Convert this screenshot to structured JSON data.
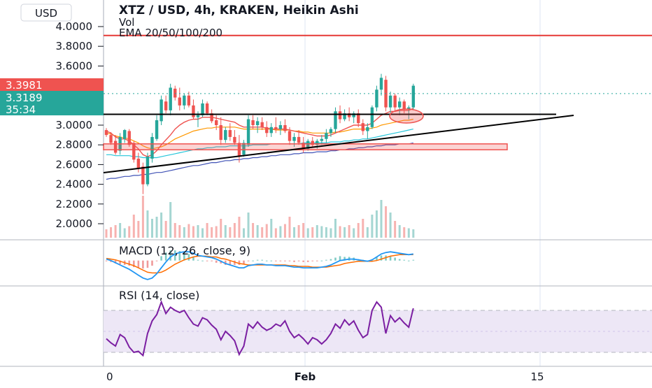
{
  "header": {
    "currency_button": "USD",
    "title": "XTZ / USD, 4h, KRAKEN, Heikin Ashi",
    "volume_label": "Vol",
    "ema_label": "EMA 20/50/100/200"
  },
  "price_labels": [
    {
      "text": "3.3981",
      "color": "#ef5350"
    },
    {
      "text": "3.3189",
      "color": "#26a69a"
    },
    {
      "text": "35:34",
      "color": "#26a69a"
    }
  ],
  "colors": {
    "up": "#26a69a",
    "down": "#ef5350",
    "ema20": "#ef5350",
    "ema50": "#ff9800",
    "ema100": "#26c6da",
    "ema200": "#3f51b5",
    "macd": "#2196f3",
    "signal": "#ff6d00",
    "rsi": "#7b1fa2",
    "rsi_band": "#ede7f6",
    "horizontal_line": "#e53935",
    "grid": "#e9eef7",
    "trendline": "#000000"
  },
  "chart_data": [
    {
      "type": "candlestick",
      "title": "XTZ / USD, 4h, KRAKEN, Heikin Ashi",
      "ylim": [
        1.8,
        4.15
      ],
      "y_ticks": [
        "4.0000",
        "3.8000",
        "3.6000",
        "3.4000",
        "3.2000",
        "3.0000",
        "2.8000",
        "2.6000",
        "2.4000",
        "2.2000",
        "2.0000"
      ],
      "x_ticks": [
        "0",
        "Feb",
        "15"
      ],
      "candles": [
        {
          "o": 2.95,
          "h": 2.97,
          "l": 2.88,
          "c": 2.9
        },
        {
          "o": 2.9,
          "h": 2.93,
          "l": 2.8,
          "c": 2.82
        },
        {
          "o": 2.84,
          "h": 2.9,
          "l": 2.7,
          "c": 2.72
        },
        {
          "o": 2.74,
          "h": 2.92,
          "l": 2.7,
          "c": 2.88
        },
        {
          "o": 2.86,
          "h": 2.96,
          "l": 2.82,
          "c": 2.95
        },
        {
          "o": 2.94,
          "h": 2.96,
          "l": 2.78,
          "c": 2.8
        },
        {
          "o": 2.82,
          "h": 2.84,
          "l": 2.62,
          "c": 2.65
        },
        {
          "o": 2.66,
          "h": 2.72,
          "l": 2.52,
          "c": 2.56
        },
        {
          "o": 2.58,
          "h": 2.62,
          "l": 2.3,
          "c": 2.4
        },
        {
          "o": 2.4,
          "h": 2.72,
          "l": 2.38,
          "c": 2.68
        },
        {
          "o": 2.66,
          "h": 2.92,
          "l": 2.62,
          "c": 2.88
        },
        {
          "o": 2.86,
          "h": 3.1,
          "l": 2.84,
          "c": 3.05
        },
        {
          "o": 3.04,
          "h": 3.3,
          "l": 3.0,
          "c": 3.26
        },
        {
          "o": 3.24,
          "h": 3.3,
          "l": 3.12,
          "c": 3.15
        },
        {
          "o": 3.15,
          "h": 3.42,
          "l": 3.1,
          "c": 3.38
        },
        {
          "o": 3.37,
          "h": 3.4,
          "l": 3.25,
          "c": 3.28
        },
        {
          "o": 3.28,
          "h": 3.38,
          "l": 3.15,
          "c": 3.2
        },
        {
          "o": 3.2,
          "h": 3.32,
          "l": 3.16,
          "c": 3.3
        },
        {
          "o": 3.3,
          "h": 3.34,
          "l": 3.18,
          "c": 3.2
        },
        {
          "o": 3.2,
          "h": 3.26,
          "l": 3.06,
          "c": 3.08
        },
        {
          "o": 3.08,
          "h": 3.14,
          "l": 2.98,
          "c": 3.1
        },
        {
          "o": 3.1,
          "h": 3.26,
          "l": 3.08,
          "c": 3.22
        },
        {
          "o": 3.22,
          "h": 3.24,
          "l": 3.1,
          "c": 3.12
        },
        {
          "o": 3.12,
          "h": 3.16,
          "l": 3.02,
          "c": 3.04
        },
        {
          "o": 3.05,
          "h": 3.1,
          "l": 2.95,
          "c": 3.0
        },
        {
          "o": 3.0,
          "h": 3.08,
          "l": 2.8,
          "c": 2.85
        },
        {
          "o": 2.85,
          "h": 2.98,
          "l": 2.82,
          "c": 2.95
        },
        {
          "o": 2.95,
          "h": 3.02,
          "l": 2.84,
          "c": 2.88
        },
        {
          "o": 2.88,
          "h": 2.95,
          "l": 2.8,
          "c": 2.82
        },
        {
          "o": 2.82,
          "h": 2.9,
          "l": 2.62,
          "c": 2.68
        },
        {
          "o": 2.7,
          "h": 2.85,
          "l": 2.68,
          "c": 2.82
        },
        {
          "o": 2.8,
          "h": 3.1,
          "l": 2.78,
          "c": 3.06
        },
        {
          "o": 3.05,
          "h": 3.1,
          "l": 2.96,
          "c": 3.0
        },
        {
          "o": 3.0,
          "h": 3.08,
          "l": 2.92,
          "c": 3.04
        },
        {
          "o": 3.03,
          "h": 3.08,
          "l": 2.95,
          "c": 2.98
        },
        {
          "o": 2.98,
          "h": 3.04,
          "l": 2.88,
          "c": 2.92
        },
        {
          "o": 2.92,
          "h": 3.02,
          "l": 2.88,
          "c": 2.98
        },
        {
          "o": 2.98,
          "h": 3.08,
          "l": 2.92,
          "c": 2.96
        },
        {
          "o": 2.96,
          "h": 3.04,
          "l": 2.9,
          "c": 3.0
        },
        {
          "o": 3.0,
          "h": 3.06,
          "l": 2.92,
          "c": 2.94
        },
        {
          "o": 2.94,
          "h": 2.98,
          "l": 2.8,
          "c": 2.84
        },
        {
          "o": 2.84,
          "h": 2.92,
          "l": 2.78,
          "c": 2.88
        },
        {
          "o": 2.88,
          "h": 2.95,
          "l": 2.8,
          "c": 2.82
        },
        {
          "o": 2.82,
          "h": 2.88,
          "l": 2.72,
          "c": 2.76
        },
        {
          "o": 2.76,
          "h": 2.86,
          "l": 2.74,
          "c": 2.84
        },
        {
          "o": 2.84,
          "h": 2.88,
          "l": 2.78,
          "c": 2.8
        },
        {
          "o": 2.8,
          "h": 2.86,
          "l": 2.76,
          "c": 2.84
        },
        {
          "o": 2.84,
          "h": 2.9,
          "l": 2.8,
          "c": 2.86
        },
        {
          "o": 2.86,
          "h": 2.96,
          "l": 2.82,
          "c": 2.92
        },
        {
          "o": 2.92,
          "h": 2.98,
          "l": 2.88,
          "c": 2.96
        },
        {
          "o": 2.96,
          "h": 3.18,
          "l": 2.92,
          "c": 3.14
        },
        {
          "o": 3.14,
          "h": 3.2,
          "l": 3.02,
          "c": 3.06
        },
        {
          "o": 3.06,
          "h": 3.16,
          "l": 3.04,
          "c": 3.12
        },
        {
          "o": 3.12,
          "h": 3.18,
          "l": 3.04,
          "c": 3.08
        },
        {
          "o": 3.08,
          "h": 3.14,
          "l": 3.02,
          "c": 3.12
        },
        {
          "o": 3.12,
          "h": 3.16,
          "l": 2.98,
          "c": 3.02
        },
        {
          "o": 3.02,
          "h": 3.06,
          "l": 2.9,
          "c": 2.94
        },
        {
          "o": 2.94,
          "h": 3.02,
          "l": 2.86,
          "c": 2.98
        },
        {
          "o": 2.98,
          "h": 3.2,
          "l": 2.96,
          "c": 3.18
        },
        {
          "o": 3.18,
          "h": 3.4,
          "l": 3.14,
          "c": 3.36
        },
        {
          "o": 3.36,
          "h": 3.52,
          "l": 3.3,
          "c": 3.48
        },
        {
          "o": 3.46,
          "h": 3.5,
          "l": 3.14,
          "c": 3.18
        },
        {
          "o": 3.18,
          "h": 3.34,
          "l": 3.12,
          "c": 3.3
        },
        {
          "o": 3.3,
          "h": 3.32,
          "l": 3.14,
          "c": 3.18
        },
        {
          "o": 3.18,
          "h": 3.28,
          "l": 3.1,
          "c": 3.24
        },
        {
          "o": 3.24,
          "h": 3.26,
          "l": 3.12,
          "c": 3.16
        },
        {
          "o": 3.16,
          "h": 3.2,
          "l": 3.06,
          "c": 3.18
        },
        {
          "o": 3.18,
          "h": 3.42,
          "l": 3.16,
          "c": 3.4
        }
      ],
      "ema20": [
        2.94,
        2.92,
        2.88,
        2.86,
        2.86,
        2.84,
        2.8,
        2.76,
        2.7,
        2.68,
        2.7,
        2.74,
        2.8,
        2.85,
        2.9,
        2.96,
        3.0,
        3.03,
        3.05,
        3.06,
        3.06,
        3.08,
        3.08,
        3.08,
        3.07,
        3.06,
        3.05,
        3.04,
        3.03,
        3.0,
        2.98,
        2.98,
        2.98,
        2.98,
        2.98,
        2.97,
        2.96,
        2.96,
        2.96,
        2.96,
        2.95,
        2.94,
        2.93,
        2.92,
        2.91,
        2.9,
        2.89,
        2.89,
        2.89,
        2.9,
        2.92,
        2.94,
        2.96,
        2.98,
        3.0,
        3.0,
        3.0,
        3.0,
        3.02,
        3.06,
        3.1,
        3.12,
        3.14,
        3.14,
        3.15,
        3.15,
        3.15,
        3.17
      ],
      "ema50": [
        2.92,
        2.91,
        2.89,
        2.88,
        2.87,
        2.86,
        2.84,
        2.82,
        2.79,
        2.77,
        2.76,
        2.77,
        2.78,
        2.8,
        2.83,
        2.86,
        2.88,
        2.9,
        2.92,
        2.94,
        2.95,
        2.96,
        2.97,
        2.97,
        2.98,
        2.98,
        2.98,
        2.98,
        2.98,
        2.97,
        2.96,
        2.96,
        2.96,
        2.96,
        2.96,
        2.96,
        2.96,
        2.95,
        2.95,
        2.95,
        2.95,
        2.94,
        2.94,
        2.93,
        2.93,
        2.92,
        2.92,
        2.92,
        2.92,
        2.92,
        2.93,
        2.93,
        2.94,
        2.95,
        2.96,
        2.96,
        2.96,
        2.96,
        2.97,
        2.98,
        3.0,
        3.01,
        3.02,
        3.03,
        3.04,
        3.05,
        3.05,
        3.06
      ],
      "ema100": [
        2.7,
        2.7,
        2.69,
        2.69,
        2.69,
        2.69,
        2.68,
        2.68,
        2.67,
        2.67,
        2.67,
        2.67,
        2.68,
        2.69,
        2.7,
        2.71,
        2.72,
        2.73,
        2.74,
        2.75,
        2.76,
        2.76,
        2.77,
        2.77,
        2.78,
        2.78,
        2.78,
        2.79,
        2.79,
        2.79,
        2.79,
        2.79,
        2.8,
        2.8,
        2.8,
        2.8,
        2.81,
        2.81,
        2.81,
        2.81,
        2.81,
        2.81,
        2.81,
        2.82,
        2.82,
        2.82,
        2.82,
        2.82,
        2.82,
        2.83,
        2.83,
        2.83,
        2.84,
        2.84,
        2.85,
        2.85,
        2.86,
        2.86,
        2.87,
        2.88,
        2.89,
        2.9,
        2.91,
        2.92,
        2.93,
        2.94,
        2.95,
        2.96
      ],
      "ema200": [
        2.45,
        2.46,
        2.46,
        2.47,
        2.48,
        2.48,
        2.49,
        2.49,
        2.5,
        2.5,
        2.51,
        2.52,
        2.52,
        2.53,
        2.54,
        2.55,
        2.56,
        2.57,
        2.58,
        2.59,
        2.59,
        2.6,
        2.61,
        2.62,
        2.62,
        2.63,
        2.64,
        2.64,
        2.65,
        2.65,
        2.66,
        2.66,
        2.67,
        2.67,
        2.68,
        2.68,
        2.69,
        2.69,
        2.7,
        2.7,
        2.7,
        2.71,
        2.71,
        2.72,
        2.72,
        2.72,
        2.73,
        2.73,
        2.73,
        2.74,
        2.74,
        2.75,
        2.75,
        2.76,
        2.76,
        2.77,
        2.77,
        2.78,
        2.78,
        2.79,
        2.79,
        2.8,
        2.8,
        2.8,
        2.81,
        2.81,
        2.81,
        2.82
      ],
      "volume": [
        8,
        10,
        12,
        14,
        9,
        11,
        22,
        16,
        40,
        26,
        18,
        20,
        24,
        16,
        34,
        14,
        12,
        10,
        13,
        11,
        12,
        9,
        14,
        10,
        11,
        18,
        12,
        10,
        14,
        20,
        9,
        24,
        14,
        12,
        10,
        13,
        18,
        9,
        11,
        13,
        20,
        10,
        12,
        14,
        9,
        10,
        12,
        11,
        10,
        9,
        18,
        11,
        10,
        12,
        9,
        14,
        18,
        10,
        22,
        26,
        36,
        30,
        24,
        16,
        12,
        10,
        9,
        8
      ],
      "horizontal_level": 3.91,
      "support_zone": [
        2.75,
        2.81
      ],
      "resistance_line": 3.11,
      "rising_trendline": {
        "from": [
          0,
          2.52
        ],
        "to": [
          100,
          3.12
        ]
      }
    },
    {
      "type": "line",
      "title": "MACD (12, 26, close, 9)",
      "macd": [
        0.02,
        0.0,
        -0.03,
        -0.06,
        -0.09,
        -0.12,
        -0.16,
        -0.2,
        -0.24,
        -0.26,
        -0.24,
        -0.18,
        -0.1,
        -0.02,
        0.05,
        0.09,
        0.11,
        0.12,
        0.12,
        0.1,
        0.07,
        0.06,
        0.05,
        0.04,
        0.02,
        -0.01,
        -0.04,
        -0.06,
        -0.08,
        -0.1,
        -0.1,
        -0.07,
        -0.06,
        -0.05,
        -0.05,
        -0.06,
        -0.06,
        -0.07,
        -0.07,
        -0.07,
        -0.08,
        -0.09,
        -0.09,
        -0.1,
        -0.1,
        -0.1,
        -0.1,
        -0.09,
        -0.08,
        -0.06,
        -0.03,
        0.0,
        0.01,
        0.02,
        0.02,
        0.01,
        0.0,
        -0.01,
        0.01,
        0.05,
        0.09,
        0.11,
        0.12,
        0.11,
        0.1,
        0.09,
        0.08,
        0.09
      ],
      "signal": [
        0.03,
        0.02,
        0.01,
        -0.01,
        -0.03,
        -0.05,
        -0.07,
        -0.1,
        -0.13,
        -0.16,
        -0.17,
        -0.17,
        -0.16,
        -0.13,
        -0.09,
        -0.05,
        -0.02,
        0.01,
        0.03,
        0.05,
        0.06,
        0.06,
        0.06,
        0.05,
        0.05,
        0.03,
        0.02,
        0.0,
        -0.02,
        -0.04,
        -0.05,
        -0.06,
        -0.06,
        -0.06,
        -0.06,
        -0.06,
        -0.06,
        -0.06,
        -0.06,
        -0.06,
        -0.07,
        -0.07,
        -0.08,
        -0.08,
        -0.08,
        -0.09,
        -0.09,
        -0.09,
        -0.09,
        -0.08,
        -0.07,
        -0.06,
        -0.04,
        -0.03,
        -0.02,
        -0.01,
        -0.01,
        -0.01,
        -0.01,
        0.0,
        0.02,
        0.04,
        0.06,
        0.07,
        0.08,
        0.08,
        0.08,
        0.08
      ],
      "ylim": [
        -0.3,
        0.16
      ]
    },
    {
      "type": "line",
      "title": "RSI (14, close)",
      "rsi": [
        40,
        38,
        35,
        45,
        48,
        42,
        36,
        30,
        28,
        50,
        58,
        66,
        72,
        64,
        76,
        70,
        66,
        70,
        66,
        58,
        54,
        62,
        60,
        55,
        52,
        44,
        50,
        46,
        40,
        30,
        36,
        54,
        52,
        56,
        54,
        50,
        52,
        56,
        54,
        58,
        50,
        44,
        46,
        42,
        38,
        44,
        42,
        38,
        42,
        48,
        56,
        52,
        58,
        54,
        58,
        50,
        44,
        46,
        68,
        74,
        70,
        46,
        64,
        58,
        62,
        58,
        54,
        72
      ],
      "rsi_path": [
        [
          0,
          43
        ],
        [
          1,
          39
        ],
        [
          2,
          36
        ],
        [
          3,
          47
        ],
        [
          4,
          44
        ],
        [
          5,
          35
        ],
        [
          6,
          30
        ],
        [
          7,
          31
        ],
        [
          8,
          27
        ],
        [
          9,
          48
        ],
        [
          10,
          60
        ],
        [
          11,
          66
        ],
        [
          12,
          78
        ],
        [
          13,
          67
        ],
        [
          14,
          73
        ],
        [
          15,
          70
        ],
        [
          16,
          68
        ],
        [
          17,
          70
        ],
        [
          18,
          63
        ],
        [
          19,
          57
        ],
        [
          20,
          55
        ],
        [
          21,
          63
        ],
        [
          22,
          61
        ],
        [
          23,
          56
        ],
        [
          24,
          52
        ],
        [
          25,
          42
        ],
        [
          26,
          50
        ],
        [
          27,
          46
        ],
        [
          28,
          41
        ],
        [
          29,
          28
        ],
        [
          30,
          36
        ],
        [
          31,
          57
        ],
        [
          32,
          53
        ],
        [
          33,
          59
        ],
        [
          34,
          54
        ],
        [
          35,
          51
        ],
        [
          36,
          53
        ],
        [
          37,
          57
        ],
        [
          38,
          55
        ],
        [
          39,
          60
        ],
        [
          40,
          50
        ],
        [
          41,
          44
        ],
        [
          42,
          47
        ],
        [
          43,
          43
        ],
        [
          44,
          38
        ],
        [
          45,
          44
        ],
        [
          46,
          42
        ],
        [
          47,
          38
        ],
        [
          48,
          42
        ],
        [
          49,
          48
        ],
        [
          50,
          57
        ],
        [
          51,
          53
        ],
        [
          52,
          61
        ],
        [
          53,
          56
        ],
        [
          54,
          60
        ],
        [
          55,
          51
        ],
        [
          56,
          44
        ],
        [
          57,
          47
        ],
        [
          58,
          70
        ],
        [
          59,
          78
        ],
        [
          60,
          73
        ],
        [
          61,
          48
        ],
        [
          62,
          65
        ],
        [
          63,
          59
        ],
        [
          64,
          63
        ],
        [
          65,
          58
        ],
        [
          66,
          54
        ],
        [
          67,
          72
        ]
      ],
      "ylim": [
        20,
        95
      ],
      "band": [
        30,
        70
      ]
    }
  ]
}
